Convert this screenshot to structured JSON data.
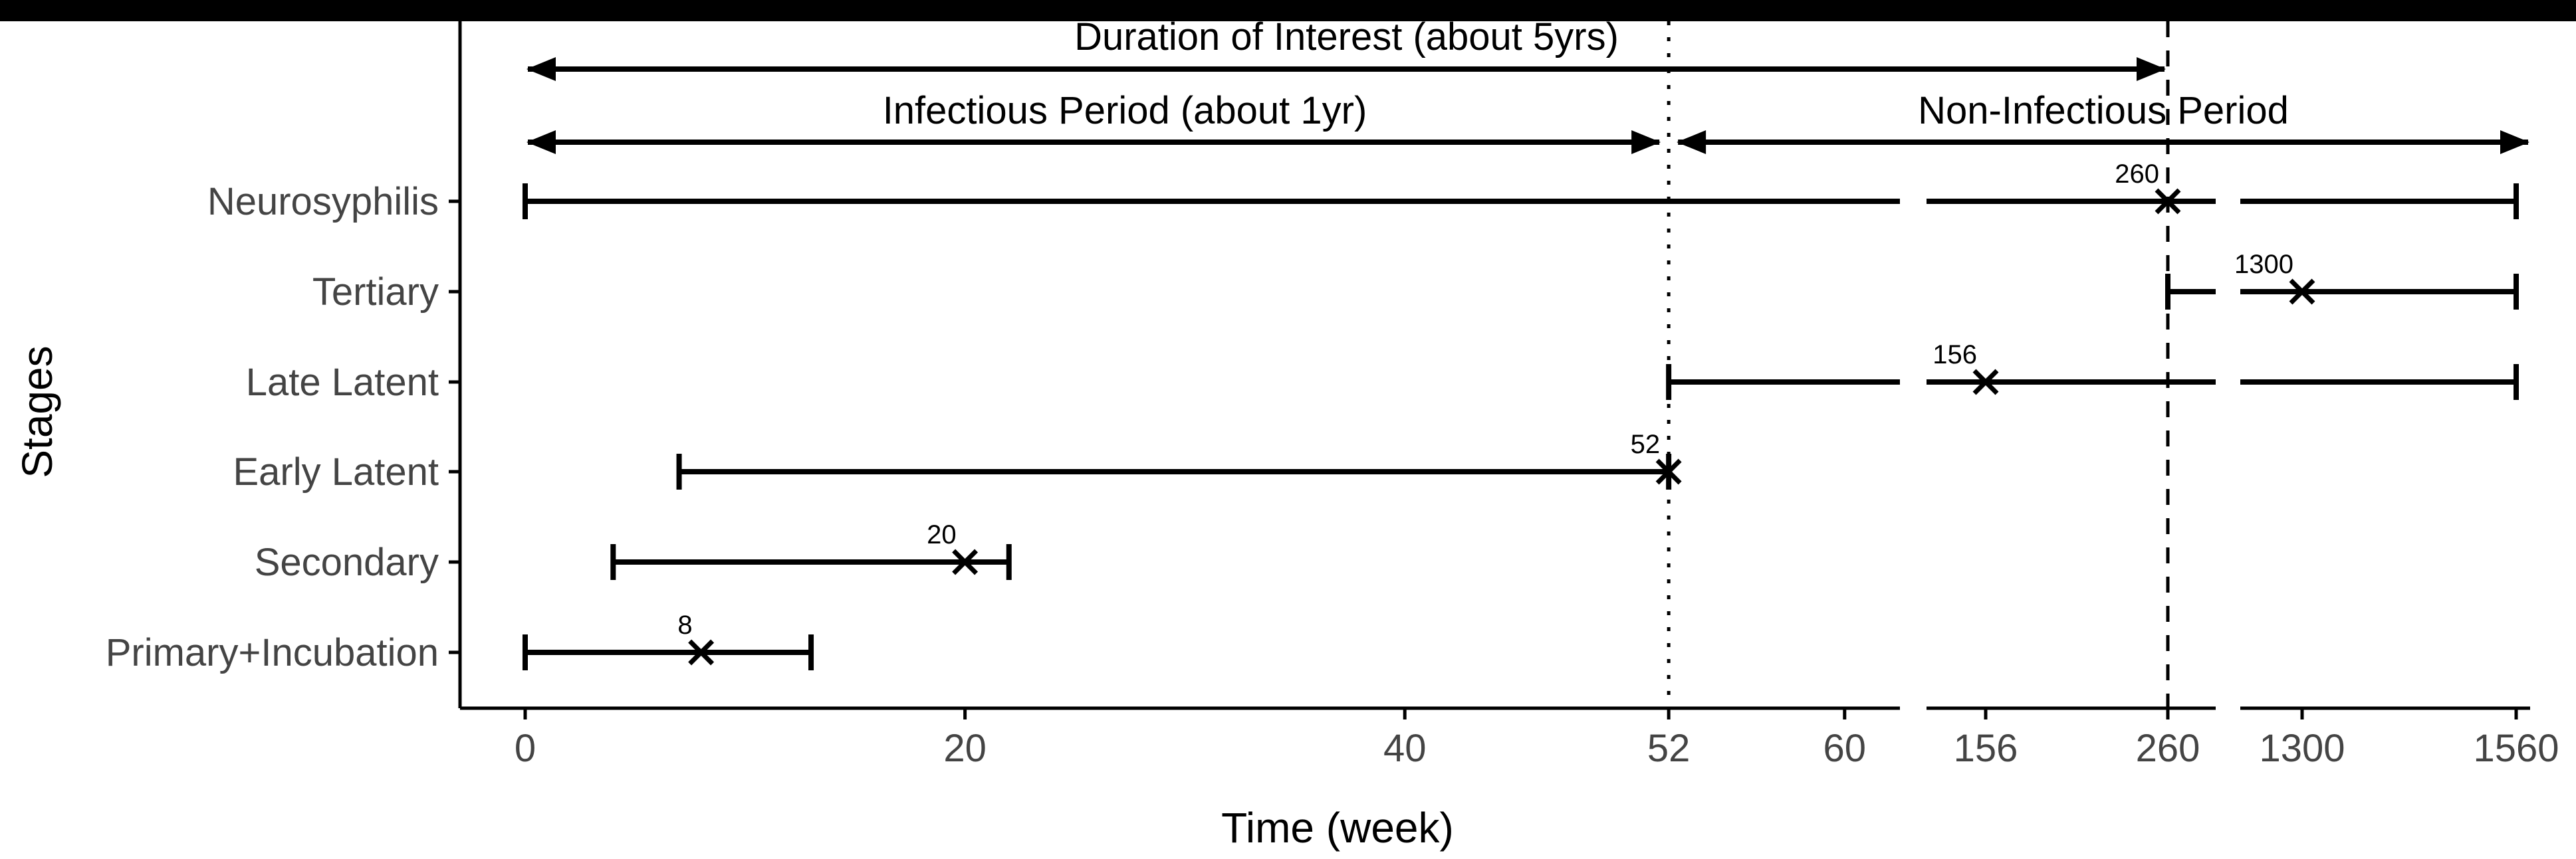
{
  "page": {
    "background": "#ffffff",
    "letterbox_color": "#000000"
  },
  "chart_data": {
    "type": "bar",
    "subtype": "horizontal-range-timeline",
    "title": "",
    "xlabel": "Time (week)",
    "ylabel": "Stages",
    "x_ticks": [
      0,
      20,
      40,
      52,
      60,
      156,
      260,
      1300,
      1560
    ],
    "axis_breaks_weeks": [
      [
        62,
        122
      ],
      [
        290,
        1225
      ]
    ],
    "grid": false,
    "legend": "none",
    "categories": [
      "Neurosyphilis",
      "Tertiary",
      "Late Latent",
      "Early Latent",
      "Secondary",
      "Primary+Incubation"
    ],
    "series": [
      {
        "name": "Neurosyphilis",
        "start_week": 0,
        "end_week": 1560,
        "marker_week": 260,
        "marker_label": "260"
      },
      {
        "name": "Tertiary",
        "start_week": 260,
        "end_week": 1560,
        "marker_week": 1300,
        "marker_label": "1300"
      },
      {
        "name": "Late Latent",
        "start_week": 52,
        "end_week": 1560,
        "marker_week": 156,
        "marker_label": "156"
      },
      {
        "name": "Early Latent",
        "start_week": 7,
        "end_week": 52,
        "marker_week": 52,
        "marker_label": "52"
      },
      {
        "name": "Secondary",
        "start_week": 4,
        "end_week": 22,
        "marker_week": 20,
        "marker_label": "20"
      },
      {
        "name": "Primary+Incubation",
        "start_week": 0,
        "end_week": 13,
        "marker_week": 8,
        "marker_label": "8"
      }
    ],
    "reference_lines": [
      {
        "week": 52,
        "style": "dotted"
      },
      {
        "week": 260,
        "style": "dashed"
      }
    ],
    "annotations": [
      {
        "label": "Duration of Interest (about 5yrs)",
        "from_week": 0,
        "to_week": 260,
        "row": "top"
      },
      {
        "label": "Infectious Period (about 1yr)",
        "from_week": 0,
        "to_week": 52,
        "row": "middle"
      },
      {
        "label": "Non-Infectious Period",
        "from_week": 52,
        "to_week": 1576,
        "row": "middle"
      }
    ],
    "colors": {
      "line": "#000000",
      "annotation_text": "#000000",
      "axis_text": "#444444",
      "marker_text": "#000000"
    }
  }
}
